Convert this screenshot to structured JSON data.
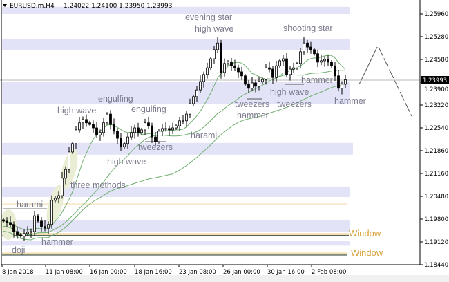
{
  "header": {
    "symbol": "EURUSD.m,H4",
    "ohlc": "1.24022 1.24100 1.23950 1.23993",
    "menu_icon": "triangle-down-icon"
  },
  "colors": {
    "background": "#ffffff",
    "zone": "#e3e3f7",
    "ma": "#6fae6f",
    "window": "#f2dcae",
    "label": "#7b7b8e",
    "window_label": "#d9a23a",
    "pattern_highlight": "#e9edd3"
  },
  "chart_data": {
    "type": "candlestick",
    "ylim": [
      1.1844,
      1.2596
    ],
    "y_ticks": [
      "1.25960",
      "1.25280",
      "1.24580",
      "1.23900",
      "1.23220",
      "1.22540",
      "1.21860",
      "1.21160",
      "1.20480",
      "1.19800",
      "1.19120",
      "1.18440"
    ],
    "x_ticks": [
      "8 Jan 2018",
      "11 Jan 08:00",
      "16 Jan 00:00",
      "18 Jan 16:00",
      "23 Jan 08:00",
      "26 Jan 00:00",
      "30 Jan 16:00",
      "2 Feb 08:00"
    ],
    "current_price": "1.23993",
    "current_price_value": 1.23993,
    "closes": [
      1.1978,
      1.1974,
      1.1968,
      1.1947,
      1.1937,
      1.1933,
      1.1941,
      1.1945,
      1.1947,
      1.1994,
      1.1978,
      1.1962,
      1.1957,
      1.1968,
      1.204,
      1.2046,
      1.2054,
      1.2106,
      1.2132,
      1.2184,
      1.2209,
      1.225,
      1.2271,
      1.2281,
      1.2271,
      1.2266,
      1.2256,
      1.2235,
      1.2242,
      1.2271,
      1.2297,
      1.2266,
      1.2246,
      1.2225,
      1.22,
      1.2209,
      1.2229,
      1.2242,
      1.2256,
      1.2242,
      1.225,
      1.2271,
      1.2262,
      1.2229,
      1.2215,
      1.2246,
      1.2254,
      1.2254,
      1.225,
      1.2256,
      1.2262,
      1.2277,
      1.2277,
      1.2297,
      1.2328,
      1.2349,
      1.2369,
      1.2394,
      1.2415,
      1.2435,
      1.2462,
      1.2489,
      1.2509,
      1.2421,
      1.2448,
      1.2452,
      1.2441,
      1.2435,
      1.2423,
      1.2411,
      1.2386,
      1.2374,
      1.239,
      1.238,
      1.2394,
      1.24,
      1.2435,
      1.2431,
      1.2406,
      1.2441,
      1.2456,
      1.2462,
      1.2415,
      1.2431,
      1.2435,
      1.2448,
      1.2483,
      1.2509,
      1.2497,
      1.2489,
      1.2477,
      1.2452,
      1.2456,
      1.246,
      1.2452,
      1.2441,
      1.2411,
      1.2374,
      1.2386,
      1.23993
    ],
    "moving_average_periods": [
      10,
      25,
      50
    ],
    "zones": [
      [
        1.2596,
        1.2617
      ],
      [
        1.2521,
        1.2488
      ],
      [
        1.2394,
        1.2328
      ],
      [
        1.2211,
        1.2176
      ],
      [
        1.2081,
        1.205
      ],
      [
        1.1982,
        1.1947
      ],
      [
        1.1918,
        1.1905
      ]
    ],
    "levels": {
      "harami_line": 1.2029
    },
    "windows": [
      {
        "label": "Window",
        "price": 1.1936
      },
      {
        "label": "Window",
        "price": 1.1878
      }
    ],
    "patterns": [
      "evening star",
      "high wave",
      "shooting star",
      "engulfing",
      "high wave",
      "engulfing",
      "tweezers",
      "high wave",
      "harami",
      "tweezers",
      "hammer",
      "high wave",
      "tweezers",
      "hammer",
      "hammer",
      "three methods",
      "harami",
      "hammer",
      "doji"
    ]
  }
}
